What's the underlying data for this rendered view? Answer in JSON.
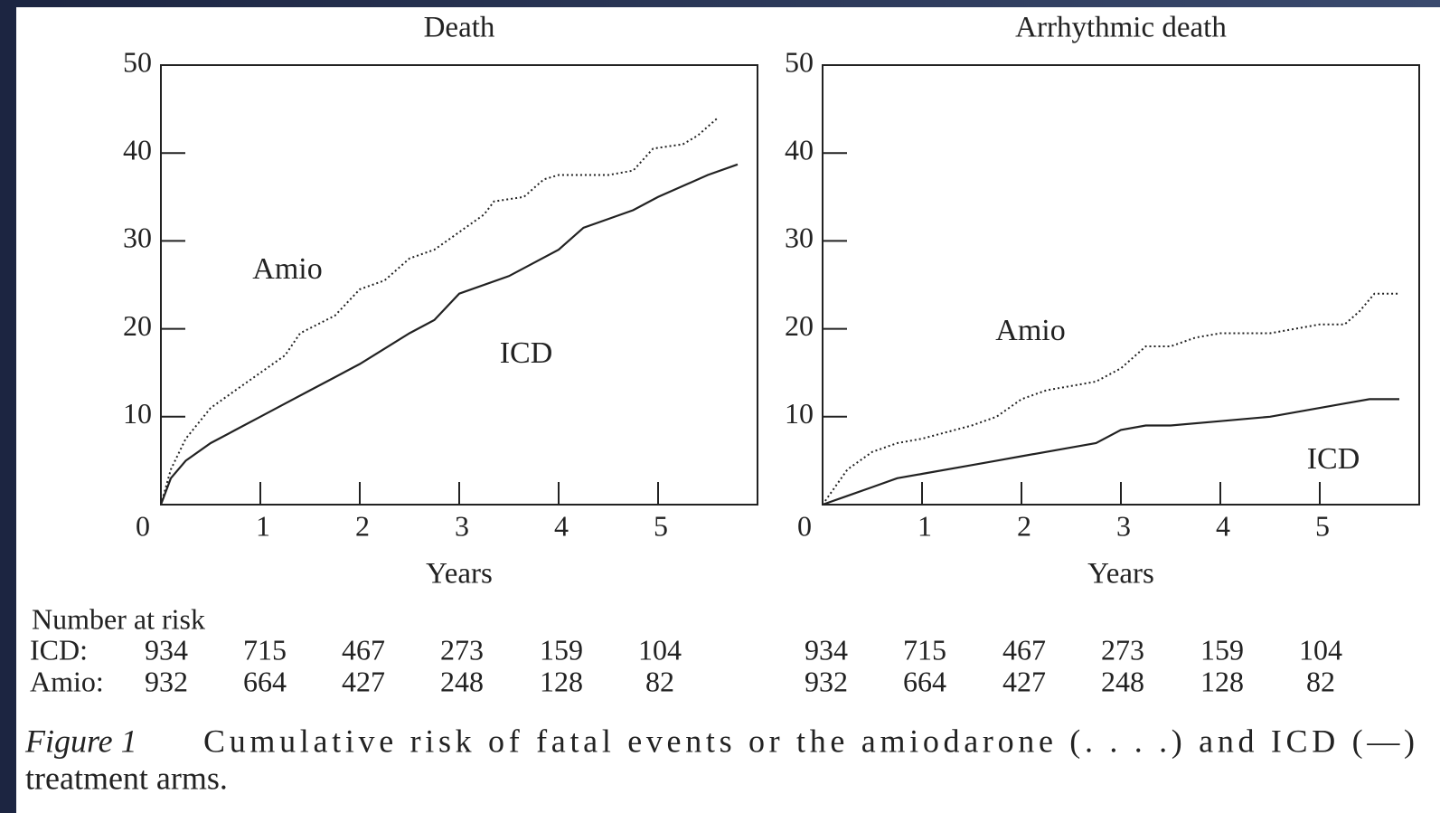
{
  "chart_data": [
    {
      "type": "line",
      "title": "Death",
      "xlabel": "Years",
      "xlim": [
        0,
        6
      ],
      "ylim": [
        0,
        50
      ],
      "xticks": [
        0,
        1,
        2,
        3,
        4,
        5
      ],
      "yticks": [
        10,
        20,
        30,
        40,
        50
      ],
      "series": [
        {
          "name": "Amio",
          "color": "#222222",
          "dash": "dotted",
          "x": [
            0,
            0.1,
            0.25,
            0.5,
            0.75,
            1,
            1.25,
            1.4,
            1.75,
            2,
            2.25,
            2.5,
            2.75,
            3,
            3.25,
            3.35,
            3.65,
            3.85,
            4,
            4.5,
            4.75,
            4.95,
            5.25,
            5.4,
            5.6
          ],
          "values": [
            0,
            4,
            7.5,
            11,
            13,
            15,
            17,
            19.5,
            21.5,
            24.5,
            25.5,
            28,
            29,
            31,
            33,
            34.5,
            35,
            37,
            37.5,
            37.5,
            38,
            40.5,
            41,
            42,
            44
          ]
        },
        {
          "name": "ICD",
          "color": "#222222",
          "dash": "solid",
          "x": [
            0,
            0.1,
            0.25,
            0.5,
            0.75,
            1,
            1.25,
            1.5,
            1.75,
            2,
            2.5,
            2.75,
            3,
            3.5,
            4,
            4.25,
            4.5,
            4.75,
            5,
            5.5,
            5.8
          ],
          "values": [
            0,
            3,
            5,
            7,
            8.5,
            10,
            11.5,
            13,
            14.5,
            16,
            19.5,
            21,
            24,
            26,
            29,
            31.5,
            32.5,
            33.5,
            35,
            37.5,
            38.7
          ]
        }
      ]
    },
    {
      "type": "line",
      "title": "Arrhythmic death",
      "xlabel": "Years",
      "xlim": [
        0,
        6
      ],
      "ylim": [
        0,
        50
      ],
      "xticks": [
        0,
        1,
        2,
        3,
        4,
        5
      ],
      "yticks": [
        10,
        20,
        30,
        40,
        50
      ],
      "series": [
        {
          "name": "Amio",
          "color": "#222222",
          "dash": "dotted",
          "x": [
            0,
            0.25,
            0.5,
            0.75,
            1,
            1.5,
            1.75,
            2,
            2.25,
            2.5,
            2.75,
            3,
            3.25,
            3.5,
            3.75,
            4,
            4.5,
            4.75,
            5,
            5.25,
            5.4,
            5.55,
            5.8
          ],
          "values": [
            0,
            4,
            6,
            7,
            7.5,
            9,
            10,
            12,
            13,
            13.5,
            14,
            15.5,
            18,
            18,
            19,
            19.5,
            19.5,
            20,
            20.5,
            20.5,
            22,
            24,
            24
          ]
        },
        {
          "name": "ICD",
          "color": "#222222",
          "dash": "solid",
          "x": [
            0,
            0.25,
            0.5,
            0.75,
            1,
            1.5,
            1.75,
            2,
            2.5,
            2.75,
            3,
            3.25,
            3.5,
            4,
            4.5,
            4.75,
            5,
            5.25,
            5.5,
            5.8
          ],
          "values": [
            0,
            1,
            2,
            3,
            3.5,
            4.5,
            5,
            5.5,
            6.5,
            7,
            8.5,
            9,
            9,
            9.5,
            10,
            10.5,
            11,
            11.5,
            12,
            12
          ]
        }
      ]
    }
  ],
  "risk_table": {
    "title": "Number at risk",
    "rows": [
      {
        "label": "ICD:",
        "left": [
          934,
          715,
          467,
          273,
          159,
          104
        ],
        "right": [
          934,
          715,
          467,
          273,
          159,
          104
        ]
      },
      {
        "label": "Amio:",
        "left": [
          932,
          664,
          427,
          248,
          128,
          82
        ],
        "right": [
          932,
          664,
          427,
          248,
          128,
          82
        ]
      }
    ]
  },
  "caption": {
    "label": "Figure 1",
    "lines": [
      "Cumulative risk of fatal events or the amiodarone (. . . .) and ICD (—)",
      "treatment arms."
    ]
  }
}
